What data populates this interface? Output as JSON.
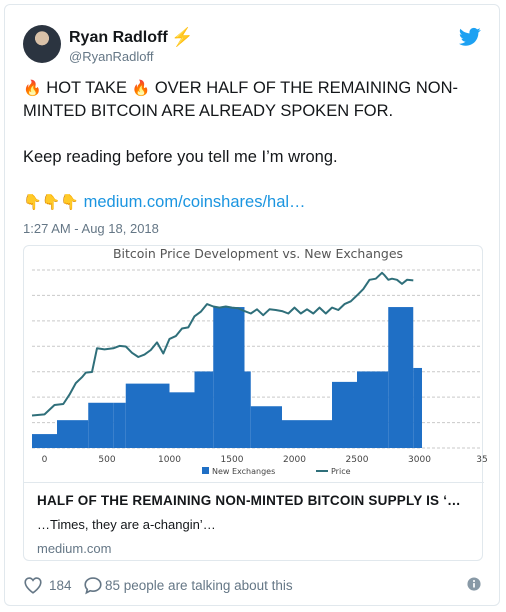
{
  "tweet": {
    "author_name": "Ryan Radloff",
    "name_emoji": "⚡",
    "handle": "@RyanRadloff",
    "text_line1_prefix": "🔥",
    "text_line1_a": "HOT TAKE",
    "text_line1_mid": "🔥",
    "text_line1_b": "OVER HALF OF THE REMAINING NON-MINTED BITCOIN ARE ALREADY SPOKEN FOR.",
    "text_line2": "Keep reading before you tell me I’m wrong.",
    "pointing_emojis": "👇👇👇",
    "link_text": "medium.com/coinshares/hal…",
    "timestamp": "1:27 AM - Aug 18, 2018"
  },
  "card": {
    "title": "HALF OF THE REMAINING NON-MINTED BITCOIN SUPPLY IS ‘…",
    "description": "…Times, they are a-changin’…",
    "domain": "medium.com"
  },
  "actions": {
    "likes": "184",
    "talking": "85 people are talking about this"
  },
  "colors": {
    "bar": "#1f6fc5",
    "price_line": "#2f6f7a",
    "link": "#1b95e0",
    "twitter_blue": "#1da1f2"
  },
  "chart_data": {
    "type": "bar",
    "title": "Bitcoin Price Development vs. New Exchanges",
    "legend": [
      "New Exchanges",
      "Price"
    ],
    "legend_position": "bottom",
    "x_ticks": [
      "0",
      "500",
      "1000",
      "1500",
      "2000",
      "2500",
      "3000",
      "35"
    ],
    "xlim": [
      -100,
      3500
    ],
    "ylim": [
      0,
      1
    ],
    "grid": true,
    "series": [
      {
        "name": "New Exchanges",
        "type": "step-area",
        "x": [
          -100,
          100,
          350,
          550,
          650,
          900,
          1000,
          1200,
          1350,
          1600,
          1650,
          1900,
          2000,
          2300,
          2500,
          2750,
          2950,
          3020
        ],
        "values": [
          0.08,
          0.16,
          0.26,
          0.26,
          0.37,
          0.37,
          0.32,
          0.44,
          0.81,
          0.44,
          0.24,
          0.16,
          0.16,
          0.38,
          0.44,
          0.81,
          0.46,
          0.08
        ]
      },
      {
        "name": "Price",
        "type": "line",
        "x": [
          -100,
          0,
          80,
          150,
          200,
          250,
          300,
          330,
          380,
          420,
          480,
          550,
          600,
          650,
          700,
          750,
          800,
          850,
          900,
          950,
          1000,
          1050,
          1100,
          1150,
          1200,
          1250,
          1300,
          1350,
          1400,
          1450,
          1500,
          1550,
          1600,
          1650,
          1700,
          1750,
          1800,
          1850,
          1900,
          1950,
          2000,
          2050,
          2100,
          2150,
          2200,
          2250,
          2300,
          2350,
          2400,
          2450,
          2500,
          2550,
          2600,
          2650,
          2700,
          2720,
          2750,
          2780,
          2820,
          2860,
          2900,
          2950
        ],
        "values": [
          0.18,
          0.2,
          0.24,
          0.26,
          0.3,
          0.38,
          0.4,
          0.44,
          0.43,
          0.58,
          0.56,
          0.58,
          0.58,
          0.59,
          0.54,
          0.53,
          0.53,
          0.57,
          0.6,
          0.55,
          0.62,
          0.65,
          0.68,
          0.7,
          0.75,
          0.79,
          0.82,
          0.82,
          0.8,
          0.82,
          0.8,
          0.81,
          0.78,
          0.78,
          0.79,
          0.77,
          0.79,
          0.8,
          0.78,
          0.78,
          0.8,
          0.78,
          0.79,
          0.78,
          0.8,
          0.78,
          0.8,
          0.8,
          0.82,
          0.85,
          0.87,
          0.92,
          0.96,
          0.98,
          1.0,
          1.0,
          0.96,
          0.98,
          0.96,
          0.95,
          0.96,
          0.97
        ]
      }
    ]
  }
}
